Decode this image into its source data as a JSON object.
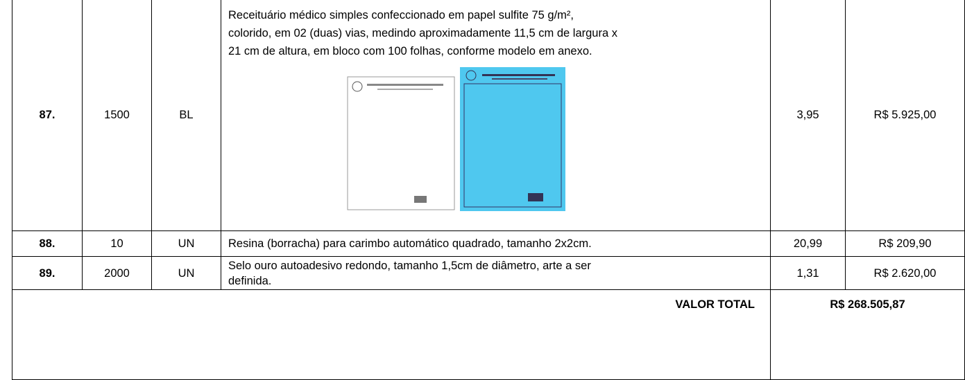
{
  "table": {
    "rows": [
      {
        "item": "87.",
        "quantity": "1500",
        "unit": "BL",
        "description": [
          "Receituário médico simples confeccionado em papel sulfite 75 g/m²,",
          "colorido, em 02 (duas) vias, medindo aproximadamente 11,5 cm de largura x",
          "21 cm de altura, em bloco com 100 folhas, conforme modelo em anexo."
        ],
        "unit_price": "3,95",
        "total": "R$ 5.925,00"
      },
      {
        "item": "88.",
        "quantity": "10",
        "unit": "UN",
        "description": [
          "Resina (borracha) para carimbo automático quadrado, tamanho 2x2cm."
        ],
        "unit_price": "20,99",
        "total": "R$ 209,90"
      },
      {
        "item": "89.",
        "quantity": "2000",
        "unit": "UN",
        "description": [
          "Selo ouro autoadesivo redondo, tamanho 1,5cm de diâmetro, arte a ser",
          "definida."
        ],
        "unit_price": "1,31",
        "total": "R$ 2.620,00"
      }
    ],
    "total_label": "VALOR TOTAL",
    "total_value": "R$ 268.505,87"
  }
}
